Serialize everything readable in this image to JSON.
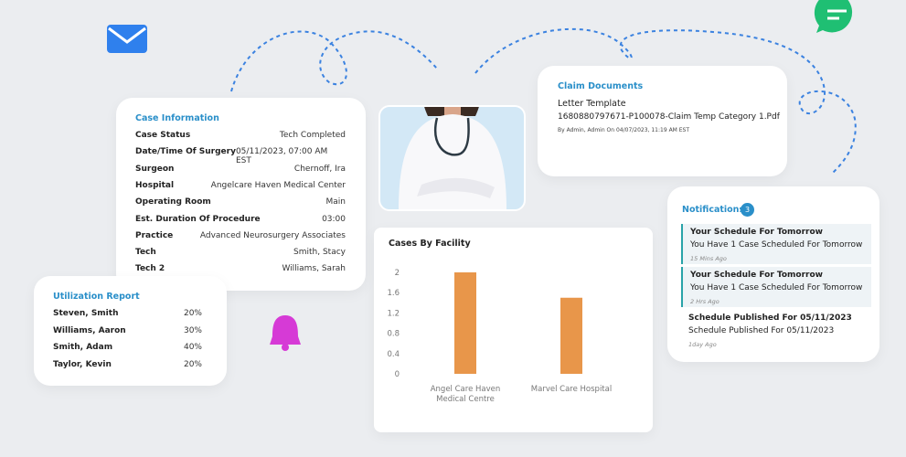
{
  "case_information": {
    "title": "Case Information",
    "rows": [
      [
        "Case Status",
        "Tech Completed"
      ],
      [
        "Date/Time Of Surgery",
        "05/11/2023, 07:00 AM EST"
      ],
      [
        "Surgeon",
        "Chernoff, Ira"
      ],
      [
        "Hospital",
        "Angelcare Haven Medical Center"
      ],
      [
        "Operating Room",
        "Main"
      ],
      [
        "Est. Duration Of Procedure",
        "03:00"
      ],
      [
        "Practice",
        "Advanced Neurosurgery Associates"
      ],
      [
        "Tech",
        "Smith, Stacy"
      ],
      [
        "Tech 2",
        "Williams, Sarah"
      ]
    ]
  },
  "utilization_report": {
    "title": "Utilization Report",
    "rows": [
      [
        "Steven, Smith",
        "20%"
      ],
      [
        "Williams, Aaron",
        "30%"
      ],
      [
        "Smith, Adam",
        "40%"
      ],
      [
        "Taylor, Kevin",
        "20%"
      ]
    ]
  },
  "claim_documents": {
    "title": "Claim Documents",
    "name": "Letter Template",
    "file": "1680880797671-P100078-Claim Temp Category 1.Pdf",
    "meta": "By Admin, Admin On 04/07/2023, 11:19 AM EST"
  },
  "notifications": {
    "title": "Notifications",
    "count": 3,
    "items": [
      {
        "title": "Your Schedule For Tomorrow",
        "message": "You Have 1 Case Scheduled For Tomorrow",
        "time": "15 Mins Ago",
        "unread": true
      },
      {
        "title": "Your Schedule For Tomorrow",
        "message": "You Have 1 Case Scheduled For Tomorrow",
        "time": "2 Hrs Ago",
        "unread": true
      },
      {
        "title": "Schedule Published For 05/11/2023",
        "message": "Schedule Published For 05/11/2023",
        "time": "1day Ago",
        "unread": false
      }
    ]
  },
  "chart_data": {
    "type": "bar",
    "title": "Cases By Facility",
    "categories": [
      "Angel Care Haven Medical Centre",
      "Marvel Care Hospital"
    ],
    "values": [
      2,
      1.5
    ],
    "color": "#e8964a",
    "ylim": [
      0,
      2
    ],
    "yticks": [
      0,
      0.4,
      0.8,
      1.2,
      1.6,
      2
    ]
  }
}
